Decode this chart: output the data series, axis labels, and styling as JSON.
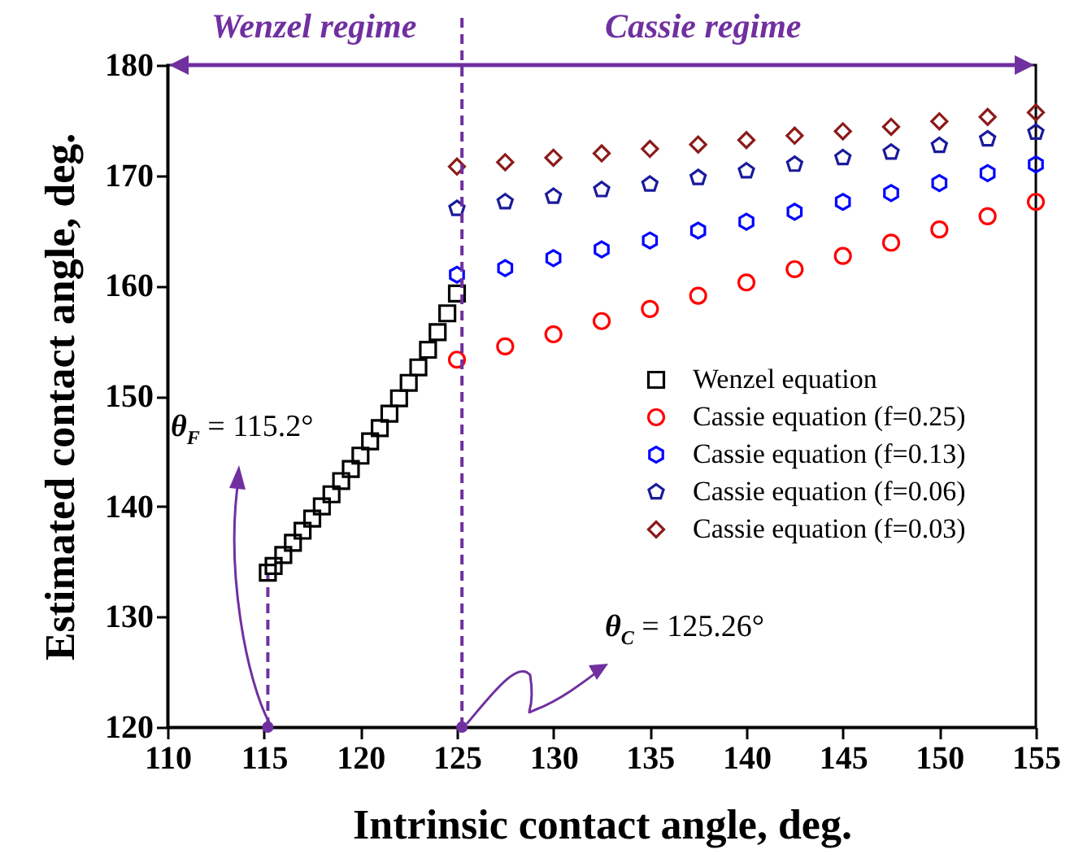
{
  "chart_data": {
    "type": "scatter",
    "xlabel": "Intrinsic contact angle, deg.",
    "ylabel": "Estimated contact angle, deg.",
    "xlim": [
      110,
      155
    ],
    "ylim": [
      120,
      180
    ],
    "xticks": [
      110,
      115,
      120,
      125,
      130,
      135,
      140,
      145,
      150,
      155
    ],
    "yticks": [
      120,
      130,
      140,
      150,
      160,
      170,
      180
    ],
    "legend": "bottom right",
    "series": [
      {
        "name": "Wenzel equation",
        "color": "#000000",
        "marker": "square",
        "x": [
          115.2,
          115.5,
          116,
          116.5,
          117,
          117.5,
          118,
          118.5,
          119,
          119.5,
          120,
          120.5,
          121,
          121.5,
          122,
          122.5,
          123,
          123.5,
          124,
          124.5,
          125
        ],
        "values": [
          134.0,
          134.6,
          135.6,
          136.7,
          137.8,
          138.9,
          140.0,
          141.1,
          142.3,
          143.4,
          144.6,
          145.9,
          147.1,
          148.4,
          149.8,
          151.2,
          152.6,
          154.2,
          155.8,
          157.5,
          159.3
        ]
      },
      {
        "name": "Cassie equation (f=0.25)",
        "color": "#ff0000",
        "marker": "circle",
        "x": [
          125,
          127.5,
          130,
          132.5,
          135,
          137.5,
          140,
          142.5,
          145,
          147.5,
          150,
          152.5,
          155
        ],
        "values": [
          153.3,
          154.5,
          155.6,
          156.8,
          157.9,
          159.1,
          160.3,
          161.5,
          162.7,
          163.9,
          165.1,
          166.3,
          167.6
        ]
      },
      {
        "name": "Cassie equation (f=0.13)",
        "color": "#0000ff",
        "x": [
          125,
          127.5,
          130,
          132.5,
          135,
          137.5,
          140,
          142.5,
          145,
          147.5,
          150,
          152.5,
          155
        ],
        "values": [
          161.0,
          161.6,
          162.5,
          163.3,
          164.1,
          165.0,
          165.8,
          166.7,
          167.6,
          168.4,
          169.3,
          170.2,
          171.0
        ]
      },
      {
        "name": "Cassie equation (f=0.06)",
        "color": "#1a1a9c",
        "x": [
          125,
          127.5,
          130,
          132.5,
          135,
          137.5,
          140,
          142.5,
          145,
          147.5,
          150,
          152.5,
          155
        ],
        "values": [
          167.0,
          167.6,
          168.1,
          168.7,
          169.2,
          169.8,
          170.4,
          171.0,
          171.6,
          172.1,
          172.7,
          173.3,
          173.9
        ]
      },
      {
        "name": "Cassie equation (f=0.03)",
        "color": "#8b1a1a",
        "marker": "diamond",
        "x": [
          125,
          127.5,
          130,
          132.5,
          135,
          137.5,
          140,
          142.5,
          145,
          147.5,
          150,
          152.5,
          155
        ],
        "values": [
          170.8,
          171.2,
          171.6,
          172.0,
          172.4,
          172.8,
          173.2,
          173.6,
          174.0,
          174.4,
          174.9,
          175.3,
          175.7
        ]
      }
    ],
    "ref_lines": [
      {
        "axis": "x",
        "value": 115.2,
        "label": "θ$_{F}$ = 115.2°",
        "color": "#7030a0",
        "line_style": "dashed"
      },
      {
        "axis": "x",
        "value": 125.26,
        "label": "θ$_{C}$ = 125.26°",
        "color": "#7030a0",
        "line_style": "dashed"
      }
    ],
    "annotations": [
      "Wenzel regime",
      "Cassie regime"
    ]
  }
}
